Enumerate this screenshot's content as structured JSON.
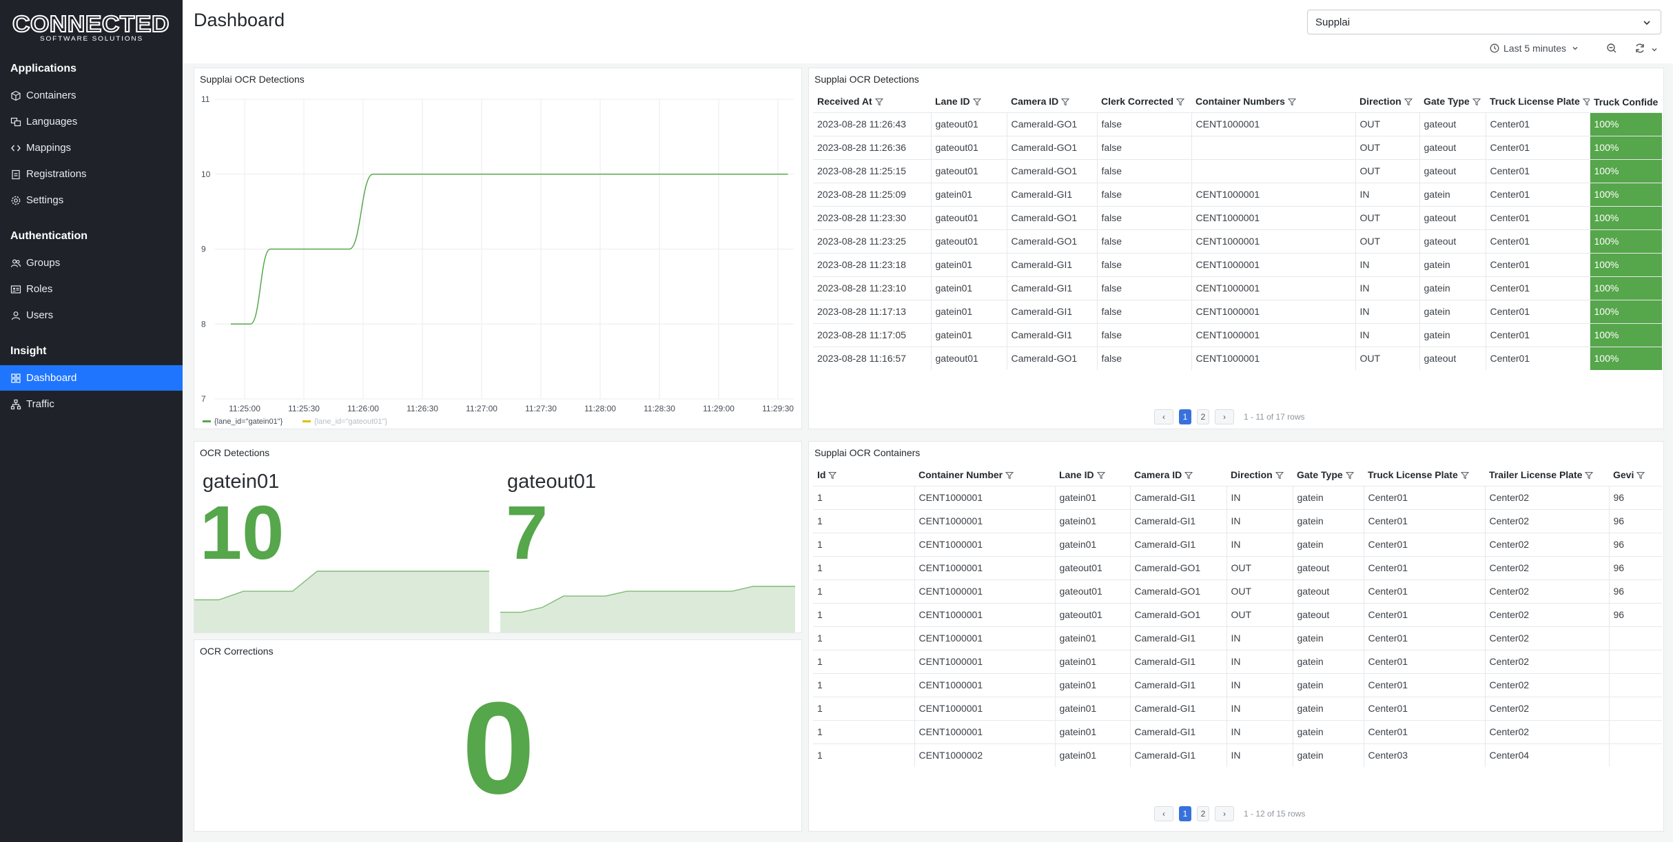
{
  "brand": {
    "logo_main": "CONNECTED",
    "logo_sub": "SOFTWARE SOLUTIONS"
  },
  "sidebar": {
    "sections": [
      {
        "title": "Applications",
        "items": [
          {
            "label": "Containers",
            "icon": "box-icon"
          },
          {
            "label": "Languages",
            "icon": "languages-icon"
          },
          {
            "label": "Mappings",
            "icon": "code-icon"
          },
          {
            "label": "Registrations",
            "icon": "clipboard-icon"
          },
          {
            "label": "Settings",
            "icon": "gear-icon"
          }
        ]
      },
      {
        "title": "Authentication",
        "items": [
          {
            "label": "Groups",
            "icon": "users-icon"
          },
          {
            "label": "Roles",
            "icon": "id-card-icon"
          },
          {
            "label": "Users",
            "icon": "user-icon"
          }
        ]
      },
      {
        "title": "Insight",
        "items": [
          {
            "label": "Dashboard",
            "icon": "grid-icon",
            "active": true
          },
          {
            "label": "Traffic",
            "icon": "network-icon"
          }
        ]
      }
    ]
  },
  "header": {
    "title": "Dashboard",
    "tenant": "Supplai",
    "time_range": "Last 5 minutes"
  },
  "panels": {
    "chart_title": "Supplai OCR Detections",
    "detections_table_title": "Supplai OCR Detections",
    "stats_title": "OCR Detections",
    "corrections_title": "OCR Corrections",
    "containers_table_title": "Supplai OCR Containers"
  },
  "chart_data": {
    "type": "line",
    "title": "Supplai OCR Detections",
    "x_ticks": [
      "11:25:00",
      "11:25:30",
      "11:26:00",
      "11:26:30",
      "11:27:00",
      "11:27:30",
      "11:28:00",
      "11:28:30",
      "11:29:00",
      "11:29:30"
    ],
    "y_ticks": [
      7,
      8,
      9,
      10,
      11
    ],
    "ylim": [
      7,
      11
    ],
    "grid": true,
    "legend_position": "bottom-left",
    "series": [
      {
        "name": "{lane_id=\"gatein01\"}",
        "color": "#56a64b",
        "hidden": false,
        "points": [
          [
            "11:24:53",
            8
          ],
          [
            "11:25:03",
            8
          ],
          [
            "11:25:13",
            9
          ],
          [
            "11:25:53",
            9
          ],
          [
            "11:26:05",
            10
          ],
          [
            "11:29:35",
            10
          ]
        ]
      },
      {
        "name": "{lane_id=\"gateout01\"}",
        "color": "#e0c000",
        "hidden": true,
        "points": []
      }
    ]
  },
  "detections_table": {
    "columns": [
      "Received At",
      "Lane ID",
      "Camera ID",
      "Clerk Corrected",
      "Container Numbers",
      "Direction",
      "Gate Type",
      "Truck License Plate",
      "Truck Confide"
    ],
    "rows": [
      [
        "2023-08-28 11:26:43",
        "gateout01",
        "CameraId-GO1",
        "false",
        "CENT1000001",
        "OUT",
        "gateout",
        "Center01",
        "100%"
      ],
      [
        "2023-08-28 11:26:36",
        "gateout01",
        "CameraId-GO1",
        "false",
        "",
        "OUT",
        "gateout",
        "Center01",
        "100%"
      ],
      [
        "2023-08-28 11:25:15",
        "gateout01",
        "CameraId-GO1",
        "false",
        "",
        "OUT",
        "gateout",
        "Center01",
        "100%"
      ],
      [
        "2023-08-28 11:25:09",
        "gatein01",
        "CameraId-GI1",
        "false",
        "CENT1000001",
        "IN",
        "gatein",
        "Center01",
        "100%"
      ],
      [
        "2023-08-28 11:23:30",
        "gateout01",
        "CameraId-GO1",
        "false",
        "CENT1000001",
        "OUT",
        "gateout",
        "Center01",
        "100%"
      ],
      [
        "2023-08-28 11:23:25",
        "gateout01",
        "CameraId-GO1",
        "false",
        "CENT1000001",
        "OUT",
        "gateout",
        "Center01",
        "100%"
      ],
      [
        "2023-08-28 11:23:18",
        "gatein01",
        "CameraId-GI1",
        "false",
        "CENT1000001",
        "IN",
        "gatein",
        "Center01",
        "100%"
      ],
      [
        "2023-08-28 11:23:10",
        "gatein01",
        "CameraId-GI1",
        "false",
        "CENT1000001",
        "IN",
        "gatein",
        "Center01",
        "100%"
      ],
      [
        "2023-08-28 11:17:13",
        "gatein01",
        "CameraId-GI1",
        "false",
        "CENT1000001",
        "IN",
        "gatein",
        "Center01",
        "100%"
      ],
      [
        "2023-08-28 11:17:05",
        "gatein01",
        "CameraId-GI1",
        "false",
        "CENT1000001",
        "IN",
        "gatein",
        "Center01",
        "100%"
      ],
      [
        "2023-08-28 11:16:57",
        "gateout01",
        "CameraId-GO1",
        "false",
        "CENT1000001",
        "OUT",
        "gateout",
        "Center01",
        "100%"
      ]
    ],
    "pager": {
      "prev": "‹",
      "pages": [
        "1",
        "2"
      ],
      "next": "›",
      "summary": "1 - 11 of 17 rows"
    }
  },
  "stats": [
    {
      "name": "gatein01",
      "value": "10",
      "spark": [
        9,
        9,
        9.3,
        9.3,
        9.3,
        10,
        10,
        10,
        10,
        10,
        10,
        10,
        10
      ]
    },
    {
      "name": "gateout01",
      "value": "7",
      "spark": [
        5,
        5,
        5.3,
        6,
        6,
        6,
        6.3,
        6.3,
        6.3,
        6.3,
        6.3,
        6.3,
        6.6,
        6.6,
        6.6
      ]
    }
  ],
  "corrections": {
    "value": "0"
  },
  "containers_table": {
    "columns": [
      "Id",
      "Container Number",
      "Lane ID",
      "Camera ID",
      "Direction",
      "Gate Type",
      "Truck License Plate",
      "Trailer License Plate",
      "Gevi"
    ],
    "rows": [
      [
        "1",
        "CENT1000001",
        "gatein01",
        "CameraId-GI1",
        "IN",
        "gatein",
        "Center01",
        "Center02",
        "96"
      ],
      [
        "1",
        "CENT1000001",
        "gatein01",
        "CameraId-GI1",
        "IN",
        "gatein",
        "Center01",
        "Center02",
        "96"
      ],
      [
        "1",
        "CENT1000001",
        "gatein01",
        "CameraId-GI1",
        "IN",
        "gatein",
        "Center01",
        "Center02",
        "96"
      ],
      [
        "1",
        "CENT1000001",
        "gateout01",
        "CameraId-GO1",
        "OUT",
        "gateout",
        "Center01",
        "Center02",
        "96"
      ],
      [
        "1",
        "CENT1000001",
        "gateout01",
        "CameraId-GO1",
        "OUT",
        "gateout",
        "Center01",
        "Center02",
        "96"
      ],
      [
        "1",
        "CENT1000001",
        "gateout01",
        "CameraId-GO1",
        "OUT",
        "gateout",
        "Center01",
        "Center02",
        "96"
      ],
      [
        "1",
        "CENT1000001",
        "gatein01",
        "CameraId-GI1",
        "IN",
        "gatein",
        "Center01",
        "Center02",
        ""
      ],
      [
        "1",
        "CENT1000001",
        "gatein01",
        "CameraId-GI1",
        "IN",
        "gatein",
        "Center01",
        "Center02",
        ""
      ],
      [
        "1",
        "CENT1000001",
        "gatein01",
        "CameraId-GI1",
        "IN",
        "gatein",
        "Center01",
        "Center02",
        ""
      ],
      [
        "1",
        "CENT1000001",
        "gatein01",
        "CameraId-GI1",
        "IN",
        "gatein",
        "Center01",
        "Center02",
        ""
      ],
      [
        "1",
        "CENT1000001",
        "gatein01",
        "CameraId-GI1",
        "IN",
        "gatein",
        "Center01",
        "Center02",
        ""
      ],
      [
        "1",
        "CENT1000002",
        "gatein01",
        "CameraId-GI1",
        "IN",
        "gatein",
        "Center03",
        "Center04",
        ""
      ]
    ],
    "pager": {
      "prev": "‹",
      "pages": [
        "1",
        "2"
      ],
      "next": "›",
      "summary": "1 - 12 of 15 rows"
    }
  }
}
